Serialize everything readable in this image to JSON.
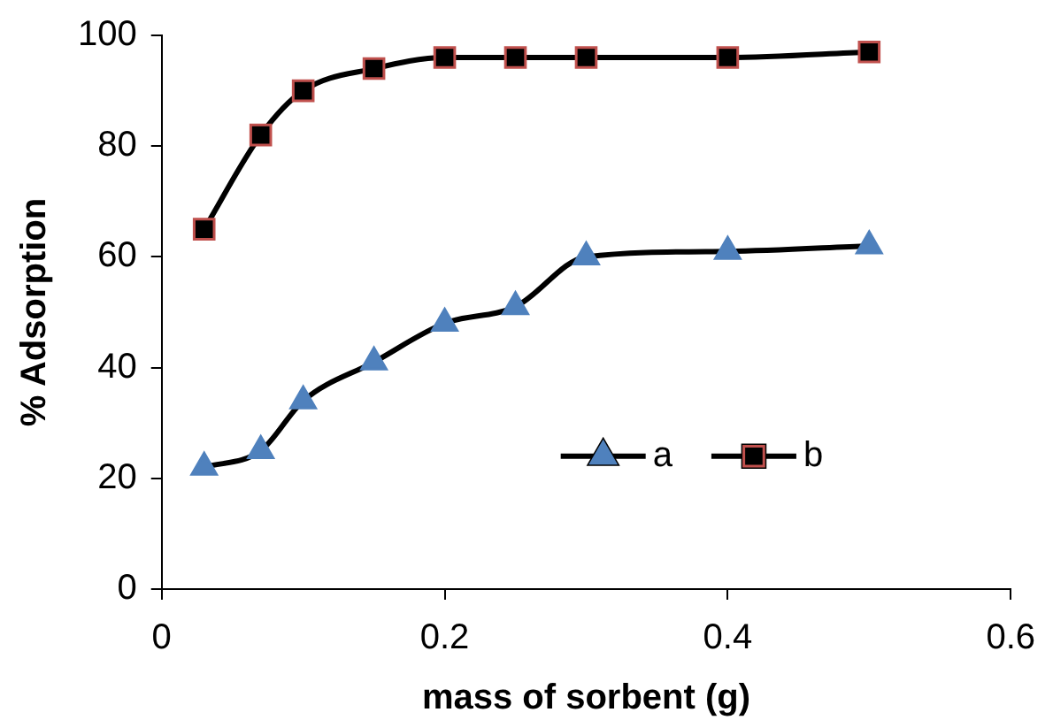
{
  "chart_data": {
    "type": "line",
    "xlabel": "mass of sorbent (g)",
    "ylabel": "% Adsorption",
    "x": [
      0.03,
      0.07,
      0.1,
      0.15,
      0.2,
      0.25,
      0.3,
      0.4,
      0.5
    ],
    "series": [
      {
        "name": "a",
        "color": "#4f81bd",
        "marker": "triangle",
        "values": [
          22,
          25,
          34,
          41,
          48,
          51,
          60,
          61,
          62
        ]
      },
      {
        "name": "b",
        "color": "#000000",
        "marker": "square",
        "values": [
          65,
          82,
          90,
          94,
          96,
          96,
          96,
          96,
          97
        ]
      }
    ],
    "xlim": [
      0,
      0.6
    ],
    "xticks": [
      0,
      0.2,
      0.4,
      0.6
    ],
    "ylim": [
      0,
      100
    ],
    "yticks": [
      0,
      20,
      40,
      60,
      80,
      100
    ],
    "grid": false,
    "legend": "bottom right",
    "line_style": "solid"
  }
}
